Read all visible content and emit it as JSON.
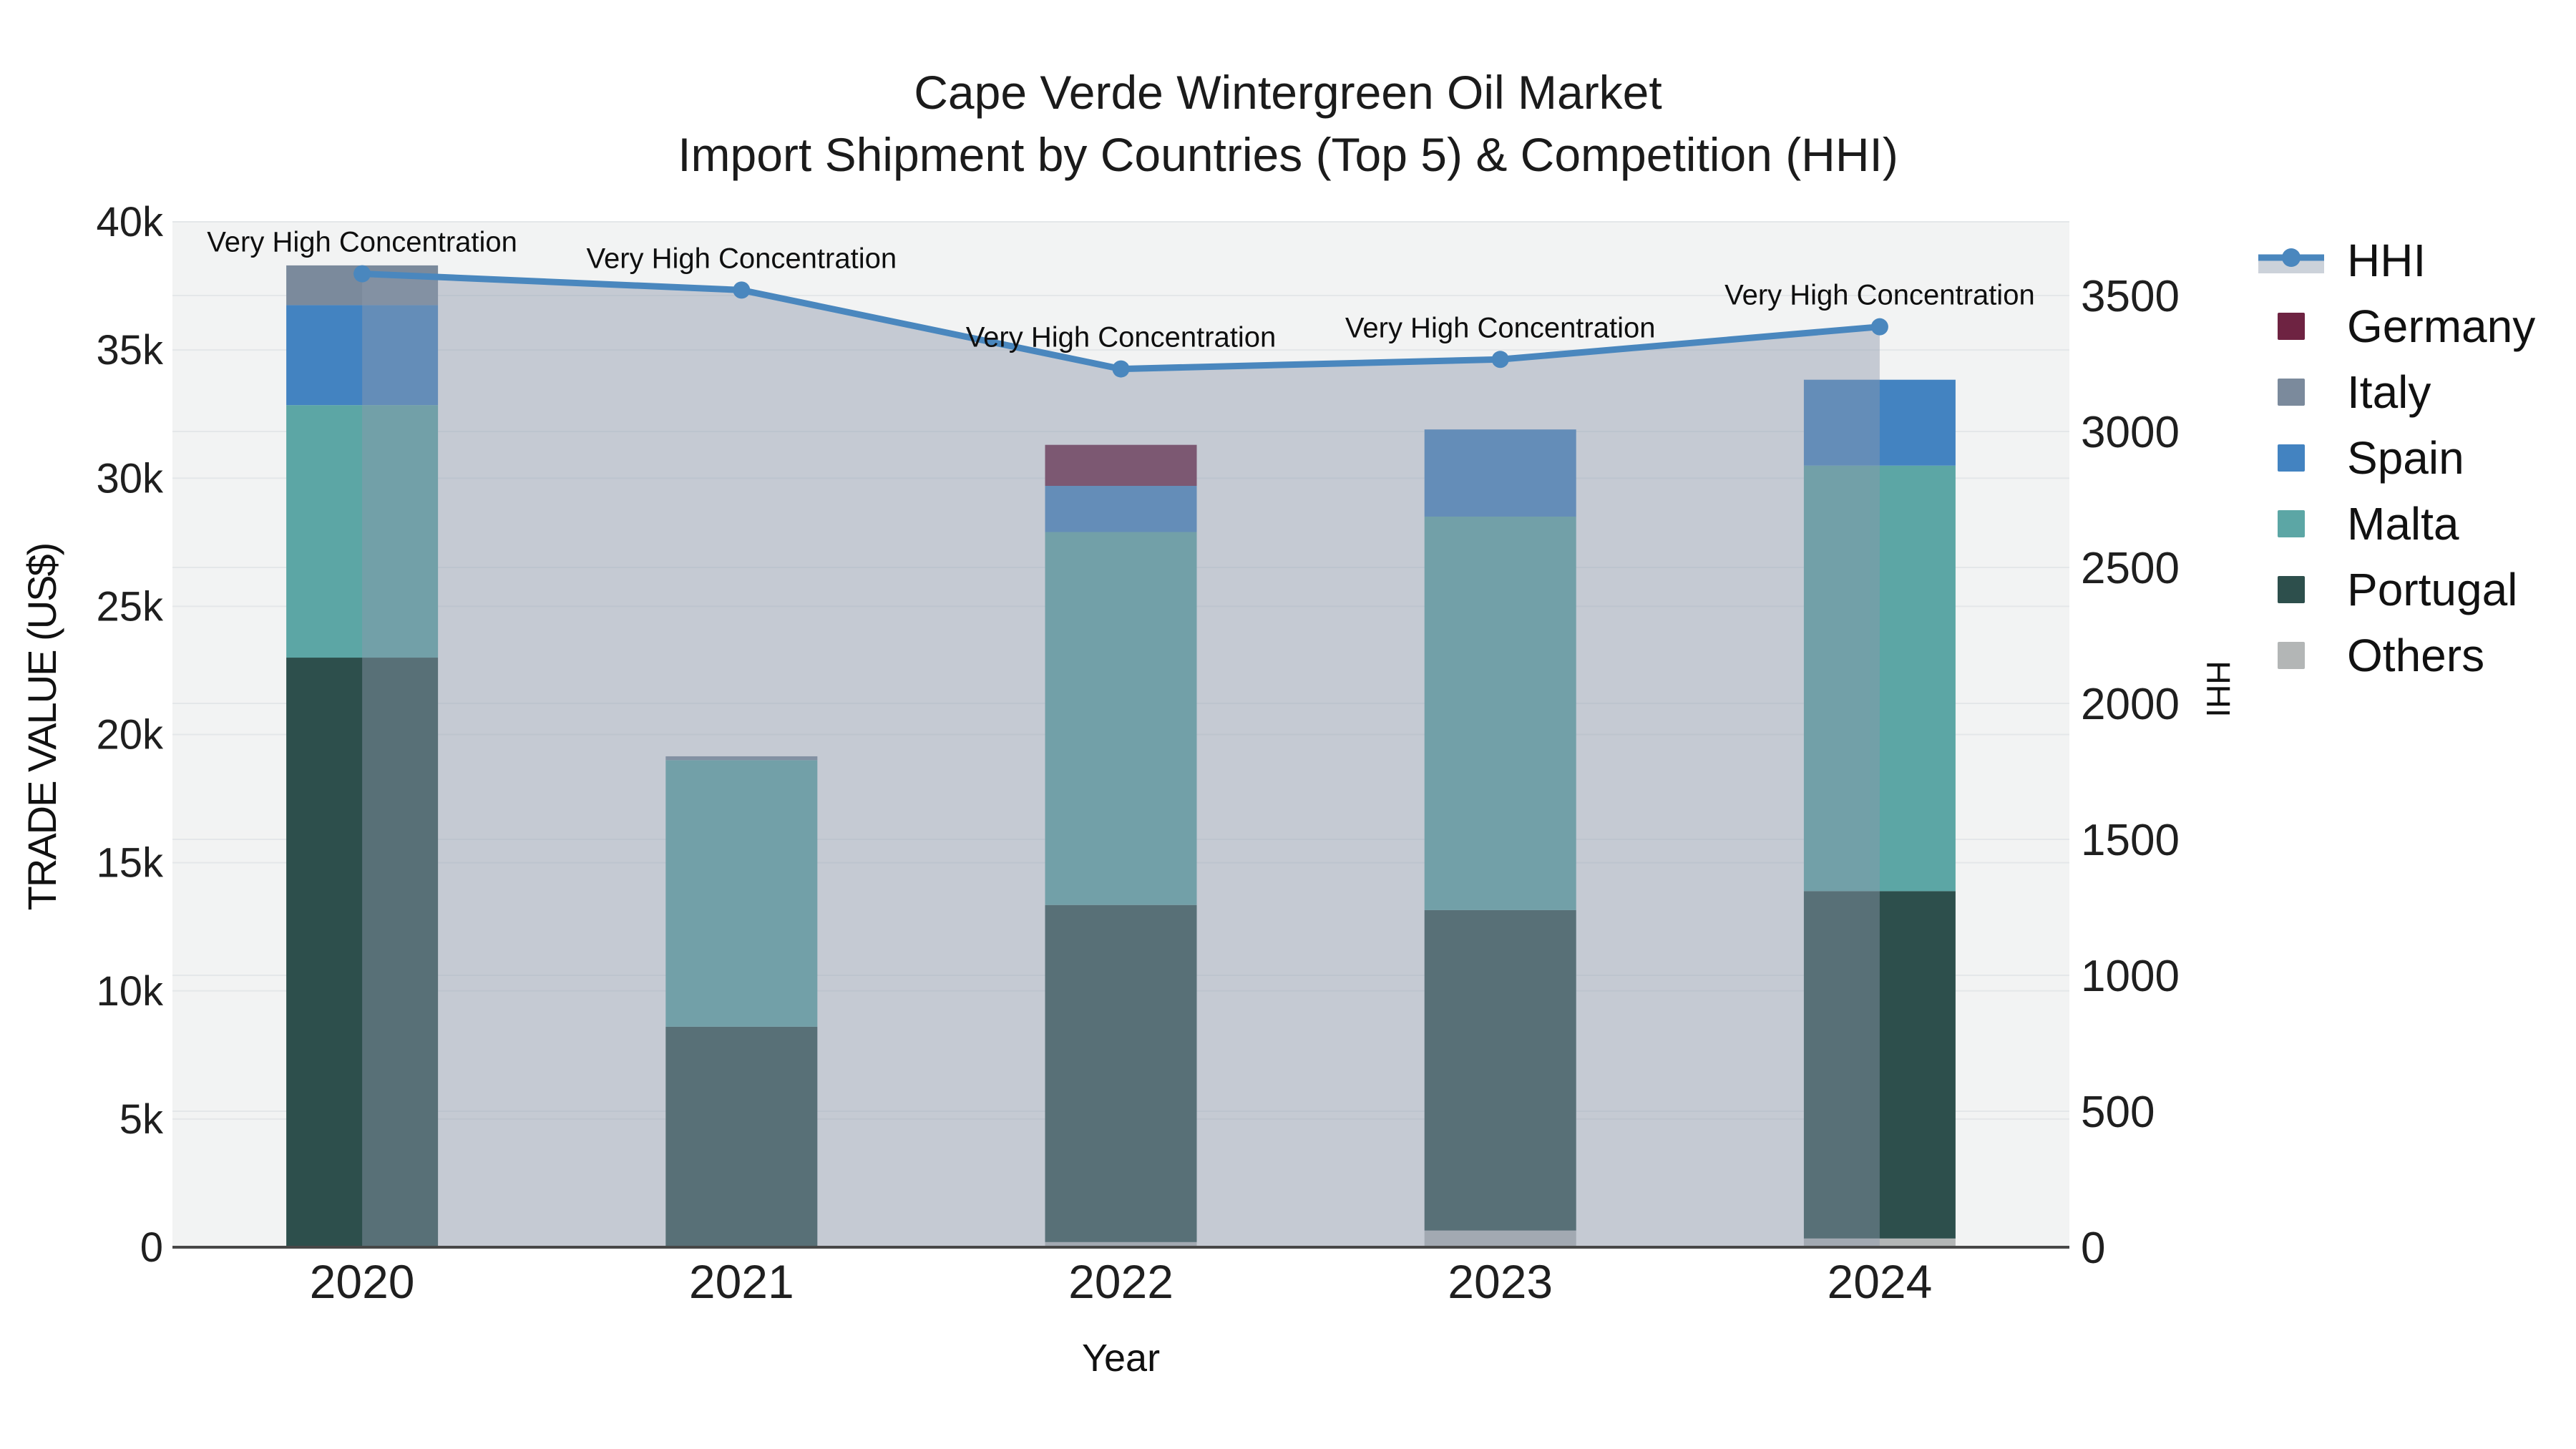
{
  "title": {
    "line1": "Cape Verde Wintergreen Oil Market",
    "line2": "Import Shipment by Countries (Top 5) & Competition (HHI)"
  },
  "axes": {
    "x_title": "Year",
    "y_left_title": "TRADE VALUE (US$)",
    "y_right_title": "HHI",
    "y_left_max": 40000,
    "y_left_ticks": [
      {
        "value": 0,
        "label": "0"
      },
      {
        "value": 5000,
        "label": "5k"
      },
      {
        "value": 10000,
        "label": "10k"
      },
      {
        "value": 15000,
        "label": "15k"
      },
      {
        "value": 20000,
        "label": "20k"
      },
      {
        "value": 25000,
        "label": "25k"
      },
      {
        "value": 30000,
        "label": "30k"
      },
      {
        "value": 35000,
        "label": "35k"
      },
      {
        "value": 40000,
        "label": "40k"
      }
    ],
    "y_right_max": 3771,
    "y_right_ticks": [
      {
        "value": 0,
        "label": "0"
      },
      {
        "value": 500,
        "label": "500"
      },
      {
        "value": 1000,
        "label": "1000"
      },
      {
        "value": 1500,
        "label": "1500"
      },
      {
        "value": 2000,
        "label": "2000"
      },
      {
        "value": 2500,
        "label": "2500"
      },
      {
        "value": 3000,
        "label": "3000"
      },
      {
        "value": 3500,
        "label": "3500"
      }
    ]
  },
  "colors": {
    "plot_bg": "#f2f3f3",
    "gridline": "#e4e7e9",
    "axis_line": "#474747",
    "tick_text": "#1f1f1f",
    "annotation_text": "#0f0f0f",
    "legend_fill_band": "#ccd2da"
  },
  "chart_data": {
    "type": "bar+line",
    "title": "Cape Verde Wintergreen Oil Market — Import Shipment by Countries (Top 5) & Competition (HHI)",
    "xlabel": "Year",
    "ylabel_left": "TRADE VALUE (US$)",
    "ylabel_right": "HHI",
    "ylim_left": [
      0,
      40000
    ],
    "ylim_right": [
      0,
      3771
    ],
    "grid": true,
    "legend_position": "right",
    "categories": [
      "2020",
      "2021",
      "2022",
      "2023",
      "2024"
    ],
    "bar_series": [
      {
        "name": "Others",
        "color": "#b3b6b6",
        "values": [
          0,
          0,
          200,
          650,
          340
        ]
      },
      {
        "name": "Portugal",
        "color": "#2d4f4c",
        "values": [
          23000,
          8600,
          13150,
          12500,
          13550
        ]
      },
      {
        "name": "Malta",
        "color": "#5ca6a5",
        "values": [
          9850,
          10400,
          14550,
          15350,
          16600
        ]
      },
      {
        "name": "Spain",
        "color": "#4383c1",
        "values": [
          3900,
          0,
          1800,
          3400,
          3350
        ]
      },
      {
        "name": "Italy",
        "color": "#7b8a9c",
        "values": [
          1550,
          150,
          0,
          0,
          0
        ]
      },
      {
        "name": "Germany",
        "color": "#6e2342",
        "values": [
          0,
          0,
          1600,
          0,
          0
        ]
      }
    ],
    "line_series": {
      "name": "HHI",
      "color": "#4a87be",
      "fill_color": "rgba(143,154,172,0.45)",
      "values": [
        3580,
        3520,
        3230,
        3265,
        3385
      ]
    },
    "annotations": [
      {
        "text": "Very High Concentration",
        "point_index": 0
      },
      {
        "text": "Very High Concentration",
        "point_index": 1
      },
      {
        "text": "Very High Concentration",
        "point_index": 2
      },
      {
        "text": "Very High Concentration",
        "point_index": 3
      },
      {
        "text": "Very High Concentration",
        "point_index": 4
      }
    ],
    "legend_order": [
      "HHI",
      "Germany",
      "Italy",
      "Spain",
      "Malta",
      "Portugal",
      "Others"
    ]
  }
}
